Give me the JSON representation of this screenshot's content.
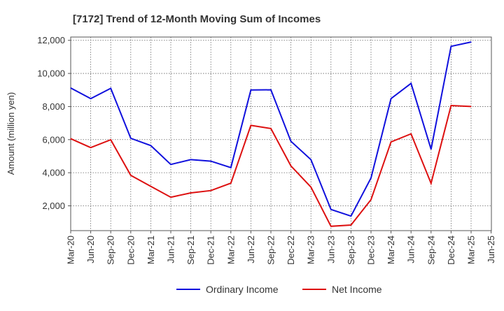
{
  "chart_data": {
    "type": "line",
    "title": "[7172]  Trend of 12-Month Moving Sum of Incomes",
    "xlabel": "",
    "ylabel": "Amount (million yen)",
    "ylim": [
      500,
      12200
    ],
    "yticks": [
      2000,
      4000,
      6000,
      8000,
      10000,
      12000
    ],
    "ytick_labels": [
      "2,000",
      "4,000",
      "6,000",
      "8,000",
      "10,000",
      "12,000"
    ],
    "categories": [
      "Mar-20",
      "Jun-20",
      "Sep-20",
      "Dec-20",
      "Mar-21",
      "Jun-21",
      "Sep-21",
      "Dec-21",
      "Mar-22",
      "Jun-22",
      "Sep-22",
      "Dec-22",
      "Mar-23",
      "Jun-23",
      "Sep-23",
      "Dec-23",
      "Mar-24",
      "Jun-24",
      "Sep-24",
      "Dec-24",
      "Mar-25",
      "Jun-25"
    ],
    "grid": true,
    "legend_position": "bottom-center",
    "series": [
      {
        "name": "Ordinary Income",
        "color": "#1010dd",
        "values": [
          9120,
          8480,
          9100,
          6080,
          5640,
          4500,
          4790,
          4700,
          4310,
          9000,
          9010,
          5900,
          4790,
          1780,
          1380,
          3680,
          8480,
          9400,
          5420,
          11640,
          11900,
          null
        ]
      },
      {
        "name": "Net Income",
        "color": "#dd1010",
        "values": [
          6060,
          5520,
          5990,
          3840,
          3180,
          2520,
          2780,
          2920,
          3370,
          6860,
          6670,
          4410,
          3130,
          760,
          840,
          2370,
          5860,
          6350,
          3360,
          8060,
          8000,
          null
        ]
      }
    ]
  }
}
